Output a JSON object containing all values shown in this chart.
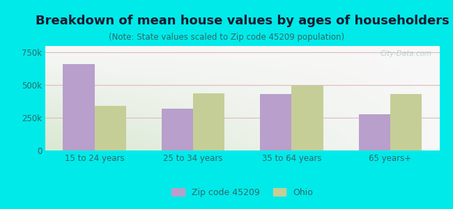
{
  "title": "Breakdown of mean house values by ages of householders",
  "subtitle": "(Note: State values scaled to Zip code 45209 population)",
  "categories": [
    "15 to 24 years",
    "25 to 34 years",
    "35 to 64 years",
    "65 years+"
  ],
  "zip_values": [
    660000,
    320000,
    430000,
    280000
  ],
  "ohio_values": [
    340000,
    440000,
    495000,
    430000
  ],
  "zip_color": "#b89fcc",
  "ohio_color": "#c5ce97",
  "background_color": "#00eaea",
  "ylim": [
    0,
    800000
  ],
  "yticks": [
    0,
    250000,
    500000,
    750000
  ],
  "ytick_labels": [
    "0",
    "250k",
    "500k",
    "750k"
  ],
  "legend_zip_label": "Zip code 45209",
  "legend_ohio_label": "Ohio",
  "bar_width": 0.32,
  "title_fontsize": 13,
  "subtitle_fontsize": 8.5,
  "tick_fontsize": 8.5,
  "legend_fontsize": 9,
  "title_color": "#1a1a2e",
  "subtitle_color": "#336666",
  "tick_color": "#336666",
  "grid_color": "#ddbbbb",
  "watermark_color": "#aacccc"
}
